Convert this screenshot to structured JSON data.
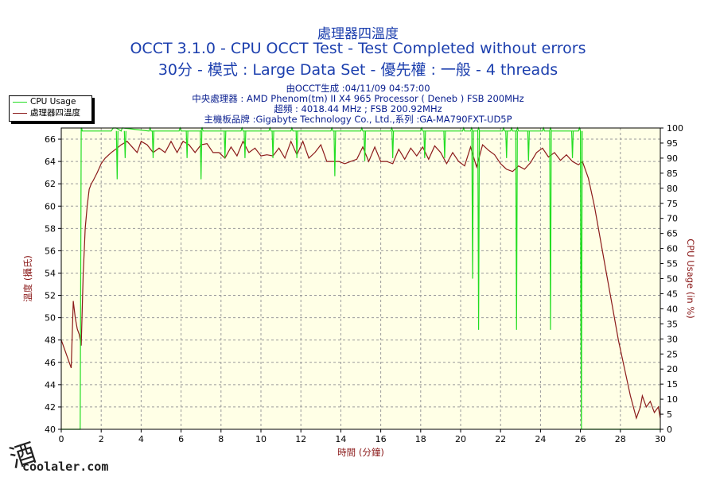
{
  "header": {
    "title_cn": "處理器四溫度",
    "title_main": "OCCT 3.1.0 - CPU OCCT Test - Test Completed without errors",
    "title_sub": "30分 - 模式 : Large Data Set - 優先權 : 一般 - 4 threads",
    "info_1": "由OCCT生成 :04/11/09 04:57:00",
    "info_2": "中央處理器 : AMD Phenom(tm) II X4 965 Processor ( Deneb ) FSB 200MHz",
    "info_3": "超頻 : 4018.44 MHz ; FSB 200.92MHz",
    "info_4": "主機板品牌 :Gigabyte Technology Co., Ltd.,系列 :GA-MA790FXT-UD5P"
  },
  "legend": [
    {
      "label": "CPU Usage",
      "color": "#22dd22"
    },
    {
      "label": "處理器四溫度",
      "color": "#8b1a1a"
    }
  ],
  "watermark": {
    "glyph": "酒",
    "text": "coolaler.com"
  },
  "colors": {
    "plot_bg": "#ffffe6",
    "grid": "#9a9a9a",
    "temp": "#8b1a1a",
    "usage": "#22dd22",
    "axis_left_label": "#8b1a1a",
    "axis_right_label": "#8b1a1a",
    "axis_x_label": "#8b1a1a"
  },
  "chart_data": {
    "type": "line",
    "xlabel": "時間 (分鐘)",
    "ylabel": "溫度 (攝氏)",
    "y2label": "CPU Usage (in %)",
    "xlim": [
      0,
      30
    ],
    "ylim": [
      40,
      67
    ],
    "y2lim": [
      0,
      100
    ],
    "x_ticks": [
      0,
      2,
      4,
      6,
      8,
      10,
      12,
      14,
      16,
      18,
      20,
      22,
      24,
      26,
      28,
      30
    ],
    "y_ticks": [
      40,
      42,
      44,
      46,
      48,
      50,
      52,
      54,
      56,
      58,
      60,
      62,
      64,
      66
    ],
    "y2_ticks": [
      0,
      5,
      10,
      15,
      20,
      25,
      30,
      35,
      40,
      45,
      50,
      55,
      60,
      65,
      70,
      75,
      80,
      85,
      90,
      95,
      100
    ],
    "grid": true,
    "legend_position": "top-left",
    "series": [
      {
        "name": "處理器四溫度",
        "axis": "left",
        "x": [
          0,
          0.2,
          0.4,
          0.5,
          0.6,
          0.7,
          0.8,
          0.9,
          1.0,
          1.1,
          1.15,
          1.2,
          1.3,
          1.4,
          1.5,
          1.6,
          1.8,
          2.0,
          2.2,
          2.5,
          2.8,
          3.0,
          3.3,
          3.6,
          3.8,
          4.0,
          4.3,
          4.6,
          4.9,
          5.2,
          5.5,
          5.8,
          6.1,
          6.4,
          6.7,
          7.0,
          7.3,
          7.6,
          7.9,
          8.2,
          8.5,
          8.8,
          9.1,
          9.4,
          9.7,
          10.0,
          10.3,
          10.6,
          10.9,
          11.2,
          11.5,
          11.8,
          12.1,
          12.4,
          12.7,
          13.0,
          13.3,
          13.6,
          13.9,
          14.2,
          14.5,
          14.8,
          15.1,
          15.4,
          15.7,
          16.0,
          16.3,
          16.6,
          16.9,
          17.2,
          17.5,
          17.8,
          18.1,
          18.4,
          18.7,
          19.0,
          19.3,
          19.6,
          19.9,
          20.2,
          20.5,
          20.8,
          21.1,
          21.4,
          21.7,
          22.0,
          22.3,
          22.6,
          22.9,
          23.2,
          23.5,
          23.8,
          24.1,
          24.4,
          24.7,
          25.0,
          25.3,
          25.6,
          25.9,
          26.1,
          26.4,
          26.7,
          27.0,
          27.3,
          27.6,
          27.9,
          28.2,
          28.5,
          28.8,
          29.0,
          29.1,
          29.3,
          29.5,
          29.7,
          29.9,
          30.0
        ],
        "y": [
          48,
          47,
          46,
          45.5,
          51.5,
          50,
          49,
          48.5,
          47.5,
          54,
          56,
          58,
          60,
          61.5,
          62,
          62.3,
          63,
          63.8,
          64.3,
          64.8,
          65.2,
          65.5,
          65.8,
          65.2,
          64.8,
          65.8,
          65.5,
          64.8,
          65.2,
          64.8,
          65.8,
          64.8,
          65.8,
          65.5,
          64.8,
          65.5,
          65.6,
          64.8,
          64.8,
          64.3,
          65.3,
          64.5,
          65.8,
          64.8,
          65.2,
          64.5,
          64.6,
          64.5,
          65.2,
          64.3,
          65.8,
          64.6,
          65.8,
          64.3,
          64.8,
          65.5,
          64,
          64,
          64,
          63.8,
          64,
          64.2,
          65.3,
          64,
          65.3,
          64,
          64,
          63.8,
          65.1,
          64.2,
          65.2,
          64.5,
          65.3,
          64.2,
          65.4,
          64.8,
          63.8,
          64.8,
          64,
          63.6,
          65.3,
          63.5,
          65.5,
          65,
          64.6,
          63.8,
          63.3,
          63.1,
          63.6,
          63.3,
          63.9,
          64.8,
          65.2,
          64.4,
          64.8,
          64.1,
          64.6,
          64,
          63.7,
          64,
          62.5,
          60,
          57,
          54,
          51,
          48,
          45.5,
          43,
          41,
          42,
          43,
          42,
          42.5,
          41.5,
          42,
          41
        ]
      },
      {
        "name": "CPU Usage",
        "axis": "right",
        "x": [
          0,
          0.95,
          1.0,
          1.02,
          1.05,
          1.2,
          1.25,
          1.3,
          2.5,
          2.6,
          2.7,
          2.75,
          3.0,
          3.05,
          3.1,
          4.4,
          4.45,
          4.5,
          5.0,
          5.9,
          5.95,
          6.0,
          7.0,
          7.05,
          7.1,
          9.0,
          9.05,
          9.1,
          10.4,
          10.45,
          10.5,
          11.5,
          11.55,
          11.6,
          13.5,
          13.55,
          13.6,
          15.0,
          15.05,
          15.1,
          16.5,
          16.55,
          16.6,
          18.0,
          18.05,
          18.1,
          20.1,
          20.15,
          20.2,
          20.5,
          20.55,
          20.6,
          20.85,
          20.9,
          20.95,
          22.1,
          22.15,
          22.2,
          22.5,
          22.55,
          22.6,
          22.8,
          22.85,
          22.9,
          24.1,
          24.15,
          24.2,
          24.45,
          24.5,
          24.55,
          25.9,
          25.95,
          26.0,
          26.02,
          26.05,
          26.1,
          30
        ],
        "y": [
          0,
          0,
          100,
          100,
          99,
          99,
          99,
          99,
          99,
          100,
          100,
          100,
          99,
          100,
          100,
          99,
          100,
          99,
          99,
          99,
          100,
          99,
          99,
          100,
          99,
          99,
          100,
          99,
          99,
          100,
          99,
          99,
          100,
          99,
          99,
          100,
          99,
          99,
          100,
          99,
          99,
          100,
          99,
          99,
          100,
          99,
          99,
          100,
          99,
          99,
          100,
          99,
          99,
          100,
          99,
          99,
          100,
          99,
          99,
          100,
          99,
          99,
          100,
          99,
          99,
          100,
          99,
          99,
          100,
          99,
          99,
          100,
          99,
          40,
          0,
          0,
          0
        ]
      }
    ],
    "usage_spikes": [
      {
        "x": 2.8,
        "y": 83
      },
      {
        "x": 3.2,
        "y": 90
      },
      {
        "x": 4.6,
        "y": 90
      },
      {
        "x": 6.3,
        "y": 90
      },
      {
        "x": 7.0,
        "y": 83
      },
      {
        "x": 8.2,
        "y": 90
      },
      {
        "x": 9.2,
        "y": 90
      },
      {
        "x": 10.6,
        "y": 90
      },
      {
        "x": 11.8,
        "y": 90
      },
      {
        "x": 13.7,
        "y": 84
      },
      {
        "x": 15.2,
        "y": 89
      },
      {
        "x": 16.6,
        "y": 90
      },
      {
        "x": 18.2,
        "y": 90
      },
      {
        "x": 19.2,
        "y": 90
      },
      {
        "x": 20.6,
        "y": 50
      },
      {
        "x": 20.9,
        "y": 33
      },
      {
        "x": 22.3,
        "y": 90
      },
      {
        "x": 22.8,
        "y": 33
      },
      {
        "x": 23.4,
        "y": 89
      },
      {
        "x": 24.5,
        "y": 33
      },
      {
        "x": 25.6,
        "y": 90
      },
      {
        "x": 26.05,
        "y": 3
      }
    ]
  }
}
